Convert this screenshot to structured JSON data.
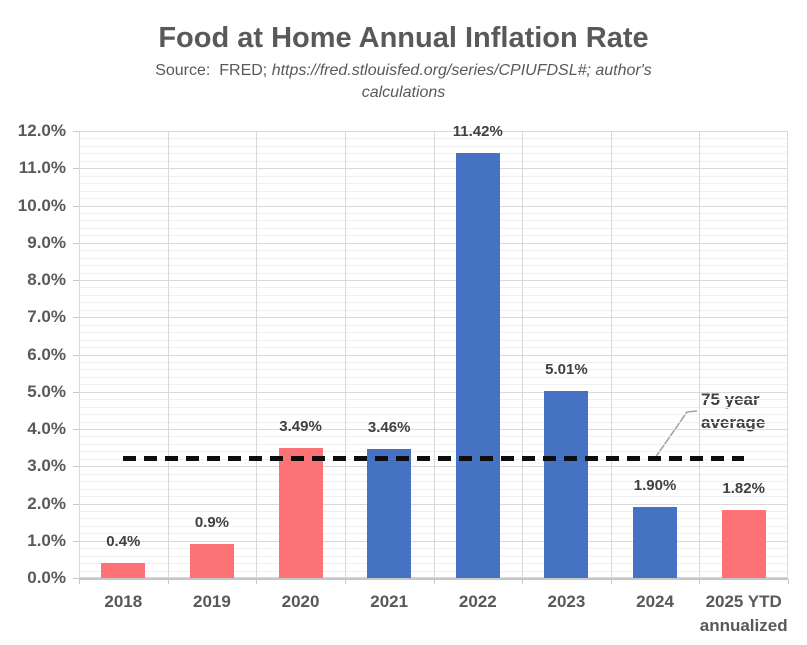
{
  "header": {
    "title": "Food at Home Annual Inflation Rate",
    "subtitle_prefix": "Source:  FRED; ",
    "subtitle_italic_line1": "https://fred.stlouisfed.org/series/CPIUFDSL#; author's",
    "subtitle_italic_line2": "calculations"
  },
  "chart_data": {
    "type": "bar",
    "title": "Food at Home Annual Inflation Rate",
    "source_note": "Source:  FRED; https://fred.stlouisfed.org/series/CPIUFDSL#; author's calculations",
    "categories": [
      "2018",
      "2019",
      "2020",
      "2021",
      "2022",
      "2023",
      "2024",
      "2025 YTD annualized"
    ],
    "values": [
      0.4,
      0.9,
      3.49,
      3.46,
      11.42,
      5.01,
      1.9,
      1.82
    ],
    "data_labels": [
      "0.4%",
      "0.9%",
      "3.49%",
      "3.46%",
      "11.42%",
      "5.01%",
      "1.90%",
      "1.82%"
    ],
    "bar_colors": [
      "#FC7277",
      "#FC7277",
      "#FC7277",
      "#4672C4",
      "#4672C4",
      "#4672C4",
      "#4672C4",
      "#FC7277"
    ],
    "reference_line": {
      "value": 3.2,
      "label": "75 year average",
      "style": "dashed",
      "color": "#0d0d0d"
    },
    "xlabel": "",
    "ylabel": "",
    "y_axis": {
      "min": 0,
      "max": 12,
      "major_step": 1,
      "minor_step": 0.2,
      "tick_labels": [
        "0.0%",
        "1.0%",
        "2.0%",
        "3.0%",
        "4.0%",
        "5.0%",
        "6.0%",
        "7.0%",
        "8.0%",
        "9.0%",
        "10.0%",
        "11.0%",
        "12.0%"
      ]
    },
    "legend": "none",
    "grid": "horizontal major+minor, vertical at category boundaries",
    "colors": {
      "blue": "#4672C4",
      "pink": "#FC7277",
      "grid_major": "#D9D9D9",
      "grid_minor": "#F0F0F0",
      "axis_text": "#595959",
      "data_label_text": "#404040",
      "callout_line": "#A6A6A6"
    }
  }
}
